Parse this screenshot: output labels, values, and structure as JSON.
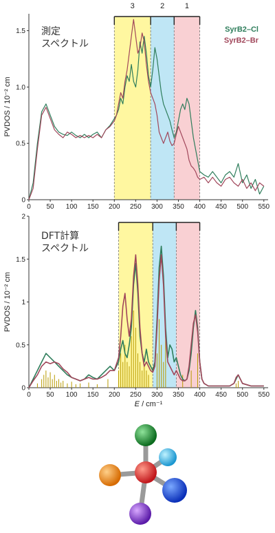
{
  "figure": {
    "xlabel_italic": "E",
    "xlabel_unit": " / cm⁻¹",
    "molecule_icon": "tetrahedral-molecule-model"
  },
  "colors": {
    "cl": "#2e7d5b",
    "br": "#a0465a",
    "region3": "#fff7a0",
    "region2": "#bfe6f5",
    "region1": "#f9d0d3",
    "sticks": "#b89a00"
  },
  "chart_data": [
    {
      "type": "line",
      "annotation": [
        "測定",
        "スペクトル"
      ],
      "xlabel": "",
      "ylabel": "PVDOS / 10⁻² cm",
      "xlim": [
        0,
        560
      ],
      "ylim": [
        0,
        1.65
      ],
      "xticks": [
        0,
        50,
        100,
        150,
        200,
        250,
        300,
        350,
        400,
        450,
        500,
        550
      ],
      "yticks": [
        0,
        0.5,
        1.0,
        1.5
      ],
      "ytick_labels": [
        "0",
        "0.5",
        "1.0",
        "1.5"
      ],
      "regions": [
        {
          "label": "3",
          "from": 200,
          "to": 285
        },
        {
          "label": "2",
          "from": 285,
          "to": 340
        },
        {
          "label": "1",
          "from": 340,
          "to": 400
        }
      ],
      "legend": [
        "SyrB2–Cl",
        "SyrB2–Br"
      ],
      "legend_position": "top-right",
      "series": [
        {
          "name": "SyrB2–Cl",
          "x": [
            0,
            10,
            20,
            30,
            40,
            50,
            60,
            70,
            80,
            90,
            100,
            110,
            120,
            130,
            140,
            150,
            160,
            170,
            180,
            190,
            200,
            205,
            210,
            215,
            220,
            225,
            230,
            235,
            240,
            245,
            250,
            255,
            260,
            265,
            270,
            275,
            280,
            285,
            290,
            295,
            300,
            305,
            310,
            315,
            320,
            325,
            330,
            335,
            340,
            345,
            350,
            355,
            360,
            365,
            370,
            375,
            380,
            385,
            390,
            395,
            400,
            410,
            420,
            430,
            440,
            450,
            460,
            470,
            480,
            490,
            500,
            510,
            520,
            530,
            540,
            550
          ],
          "y": [
            0,
            0.15,
            0.5,
            0.78,
            0.85,
            0.75,
            0.65,
            0.6,
            0.58,
            0.57,
            0.6,
            0.57,
            0.55,
            0.58,
            0.55,
            0.58,
            0.6,
            0.55,
            0.62,
            0.66,
            0.72,
            0.75,
            0.8,
            0.9,
            0.85,
            1.0,
            1.1,
            1.05,
            1.2,
            1.05,
            1.0,
            1.15,
            1.4,
            1.3,
            1.45,
            1.3,
            1.1,
            1.0,
            1.15,
            1.35,
            1.25,
            1.1,
            0.95,
            0.85,
            0.8,
            0.75,
            0.7,
            0.62,
            0.55,
            0.6,
            0.7,
            0.8,
            0.85,
            0.8,
            0.9,
            0.85,
            0.7,
            0.55,
            0.45,
            0.35,
            0.25,
            0.22,
            0.2,
            0.25,
            0.2,
            0.15,
            0.22,
            0.25,
            0.2,
            0.32,
            0.15,
            0.22,
            0.1,
            0.18,
            0.05,
            0.12
          ]
        },
        {
          "name": "SyrB2–Br",
          "x": [
            0,
            10,
            20,
            30,
            40,
            50,
            60,
            70,
            80,
            90,
            100,
            110,
            120,
            130,
            140,
            150,
            160,
            170,
            180,
            190,
            200,
            205,
            210,
            215,
            220,
            225,
            230,
            235,
            240,
            245,
            250,
            255,
            260,
            265,
            270,
            275,
            280,
            285,
            290,
            295,
            300,
            305,
            310,
            315,
            320,
            325,
            330,
            335,
            340,
            345,
            350,
            355,
            360,
            365,
            370,
            375,
            380,
            385,
            390,
            395,
            400,
            410,
            420,
            430,
            440,
            450,
            460,
            470,
            480,
            490,
            500,
            510,
            520,
            530,
            540,
            550
          ],
          "y": [
            0,
            0.1,
            0.45,
            0.75,
            0.82,
            0.72,
            0.62,
            0.58,
            0.55,
            0.6,
            0.58,
            0.55,
            0.57,
            0.55,
            0.57,
            0.55,
            0.58,
            0.55,
            0.62,
            0.65,
            0.7,
            0.75,
            0.85,
            0.95,
            0.9,
            1.05,
            1.15,
            1.3,
            1.45,
            1.6,
            1.45,
            1.3,
            1.35,
            1.48,
            1.4,
            1.2,
            1.05,
            0.95,
            0.9,
            0.85,
            0.75,
            0.6,
            0.55,
            0.5,
            0.55,
            0.6,
            0.52,
            0.48,
            0.5,
            0.58,
            0.65,
            0.6,
            0.55,
            0.5,
            0.45,
            0.35,
            0.3,
            0.28,
            0.25,
            0.2,
            0.18,
            0.2,
            0.15,
            0.2,
            0.15,
            0.12,
            0.18,
            0.2,
            0.15,
            0.12,
            0.18,
            0.1,
            0.15,
            0.08,
            0.15,
            0.12
          ]
        }
      ]
    },
    {
      "type": "line",
      "annotation": [
        "DFT計算",
        "スペクトル"
      ],
      "xlabel": "",
      "ylabel": "PVDOS / 10⁻² cm",
      "xlim": [
        0,
        560
      ],
      "ylim": [
        0,
        2.0
      ],
      "xticks": [
        0,
        50,
        100,
        150,
        200,
        250,
        300,
        350,
        400,
        450,
        500,
        550
      ],
      "yticks": [
        0,
        0.5,
        1,
        1.5,
        2
      ],
      "ytick_labels": [
        "0",
        "0.5",
        "1",
        "1.5",
        "2"
      ],
      "regions": [
        {
          "label": "",
          "from": 210,
          "to": 290
        },
        {
          "label": "",
          "from": 290,
          "to": 345
        },
        {
          "label": "",
          "from": 345,
          "to": 400
        }
      ],
      "series": [
        {
          "name": "SyrB2–Cl",
          "x": [
            0,
            10,
            20,
            30,
            40,
            50,
            60,
            70,
            80,
            90,
            100,
            110,
            120,
            130,
            140,
            150,
            160,
            170,
            180,
            190,
            200,
            210,
            215,
            220,
            225,
            230,
            235,
            240,
            245,
            250,
            255,
            260,
            265,
            270,
            275,
            280,
            285,
            290,
            295,
            300,
            305,
            310,
            315,
            320,
            325,
            330,
            335,
            340,
            345,
            350,
            355,
            360,
            365,
            370,
            375,
            380,
            385,
            390,
            395,
            400,
            405,
            410,
            420,
            440,
            460,
            470,
            480,
            485,
            490,
            495,
            500,
            520,
            550
          ],
          "y": [
            0,
            0.1,
            0.2,
            0.3,
            0.4,
            0.35,
            0.3,
            0.25,
            0.2,
            0.15,
            0.12,
            0.1,
            0.08,
            0.1,
            0.15,
            0.12,
            0.1,
            0.15,
            0.2,
            0.25,
            0.2,
            0.3,
            0.45,
            0.55,
            0.4,
            0.35,
            0.5,
            0.7,
            1.2,
            1.45,
            1.1,
            0.6,
            0.4,
            0.3,
            0.45,
            0.3,
            0.25,
            0.2,
            0.3,
            0.8,
            1.4,
            1.65,
            1.3,
            0.7,
            0.35,
            0.5,
            0.45,
            0.3,
            0.35,
            0.25,
            0.15,
            0.1,
            0.08,
            0.1,
            0.2,
            0.4,
            0.7,
            0.9,
            0.7,
            0.3,
            0.1,
            0.05,
            0.02,
            0.02,
            0.02,
            0.02,
            0.05,
            0.1,
            0.15,
            0.1,
            0.05,
            0.02,
            0.02
          ]
        },
        {
          "name": "SyrB2–Br",
          "x": [
            0,
            10,
            20,
            30,
            40,
            50,
            60,
            70,
            80,
            90,
            100,
            110,
            120,
            130,
            140,
            150,
            160,
            170,
            180,
            190,
            200,
            210,
            215,
            220,
            225,
            230,
            235,
            240,
            245,
            250,
            255,
            260,
            265,
            270,
            275,
            280,
            285,
            290,
            295,
            300,
            305,
            310,
            315,
            320,
            325,
            330,
            335,
            340,
            345,
            350,
            355,
            360,
            365,
            370,
            375,
            380,
            385,
            390,
            395,
            400,
            405,
            410,
            420,
            440,
            460,
            470,
            480,
            485,
            490,
            495,
            500,
            520,
            550
          ],
          "y": [
            0,
            0.08,
            0.15,
            0.25,
            0.3,
            0.28,
            0.3,
            0.28,
            0.22,
            0.18,
            0.12,
            0.1,
            0.08,
            0.1,
            0.12,
            0.1,
            0.1,
            0.12,
            0.15,
            0.2,
            0.2,
            0.35,
            0.6,
            0.95,
            1.1,
            0.8,
            0.6,
            0.8,
            1.3,
            1.55,
            1.2,
            0.7,
            0.4,
            0.25,
            0.3,
            0.25,
            0.2,
            0.18,
            0.25,
            0.7,
            1.25,
            1.55,
            1.2,
            0.6,
            0.3,
            0.25,
            0.2,
            0.15,
            0.2,
            0.15,
            0.1,
            0.08,
            0.08,
            0.1,
            0.25,
            0.5,
            0.75,
            0.85,
            0.65,
            0.3,
            0.1,
            0.05,
            0.02,
            0.02,
            0.02,
            0.02,
            0.05,
            0.12,
            0.15,
            0.1,
            0.05,
            0.02,
            0.02
          ]
        }
      ],
      "sticks_x": [
        20,
        30,
        35,
        40,
        45,
        50,
        55,
        60,
        65,
        70,
        75,
        80,
        90,
        100,
        110,
        120,
        140,
        160,
        185,
        210,
        215,
        220,
        225,
        230,
        235,
        240,
        245,
        250,
        255,
        260,
        265,
        270,
        275,
        280,
        300,
        305,
        310,
        315,
        320,
        360,
        380,
        395,
        485,
        490
      ],
      "sticks_y": [
        0.05,
        0.1,
        0.15,
        0.2,
        0.12,
        0.18,
        0.1,
        0.15,
        0.08,
        0.1,
        0.06,
        0.08,
        0.05,
        0.07,
        0.04,
        0.05,
        0.06,
        0.04,
        0.1,
        0.2,
        0.4,
        0.3,
        0.5,
        0.3,
        0.25,
        0.6,
        0.9,
        0.7,
        0.4,
        0.3,
        0.2,
        0.25,
        0.2,
        0.15,
        0.4,
        0.8,
        0.5,
        0.3,
        0.6,
        0.15,
        0.2,
        0.4,
        0.05,
        0.08
      ]
    }
  ]
}
